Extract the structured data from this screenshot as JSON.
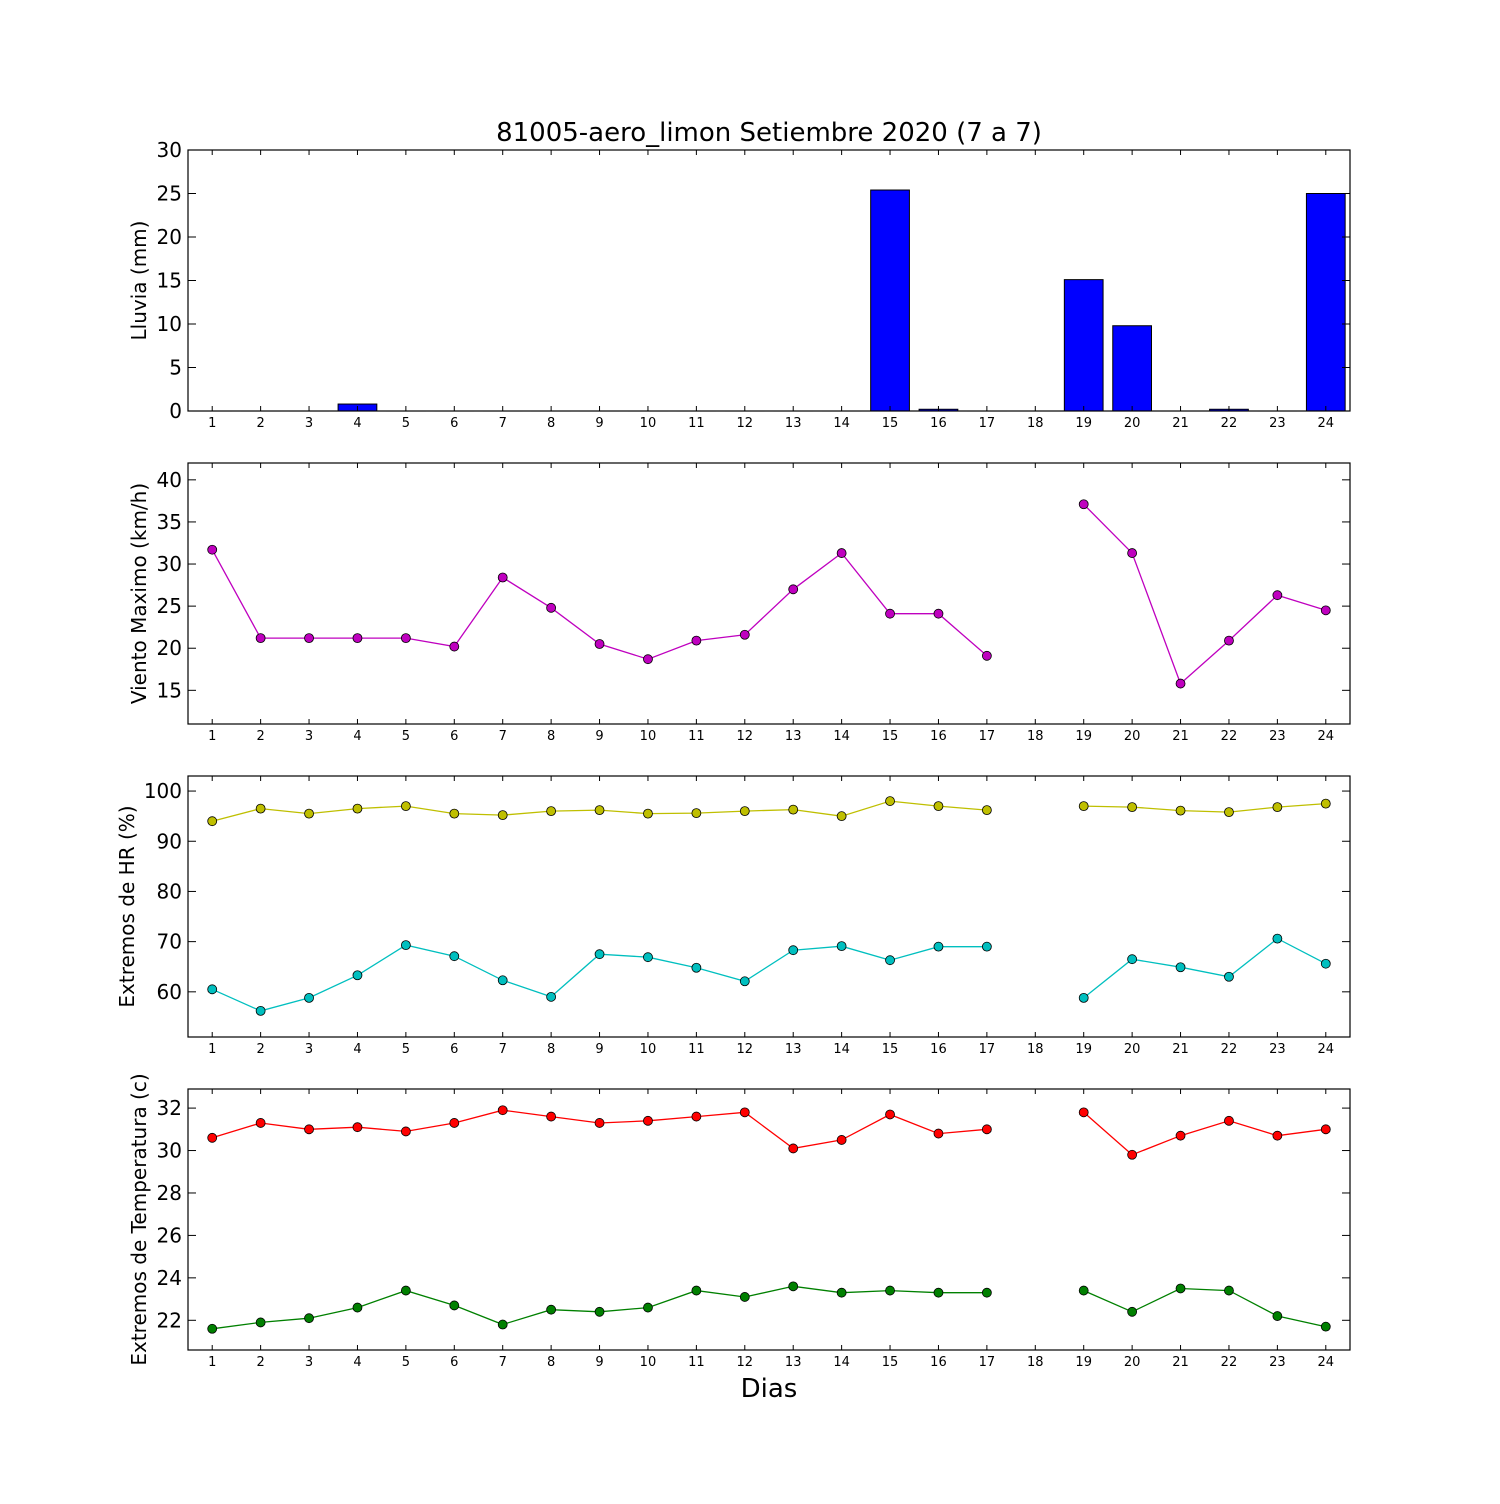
{
  "title": "81005-aero_limon Setiembre 2020  (7 a 7)",
  "xlabel": "Dias",
  "chart_data": [
    {
      "type": "bar",
      "ylabel": "Lluvia (mm)",
      "ylim": [
        0,
        30
      ],
      "yticks": [
        0,
        5,
        10,
        15,
        20,
        25,
        30
      ],
      "xlim": [
        0.5,
        24.5
      ],
      "x": [
        1,
        2,
        3,
        4,
        5,
        6,
        7,
        8,
        9,
        10,
        11,
        12,
        13,
        14,
        15,
        16,
        17,
        18,
        19,
        20,
        21,
        22,
        23,
        24
      ],
      "tick_labels": [
        "1",
        "2",
        "3",
        "4",
        "5",
        "6",
        "7",
        "8",
        "9",
        "10",
        "11",
        "12",
        "13",
        "14",
        "15",
        "16",
        "17",
        "18",
        "19",
        "20",
        "21",
        "22",
        "23",
        "24"
      ],
      "series": [
        {
          "values": [
            0,
            0,
            0,
            0.8,
            0,
            0,
            0,
            0,
            0,
            0,
            0,
            0,
            0,
            0,
            25.4,
            0.2,
            0,
            null,
            15.1,
            9.8,
            0,
            0.2,
            0,
            25.0
          ],
          "color": "#0000ff"
        }
      ]
    },
    {
      "type": "line",
      "ylabel": "Viento Maximo (km/h)",
      "ylim": [
        11,
        42
      ],
      "yticks": [
        15,
        20,
        25,
        30,
        35,
        40
      ],
      "xlim": [
        0.5,
        24.5
      ],
      "x": [
        1,
        2,
        3,
        4,
        5,
        6,
        7,
        8,
        9,
        10,
        11,
        12,
        13,
        14,
        15,
        16,
        17,
        18,
        19,
        20,
        21,
        22,
        23,
        24
      ],
      "tick_labels": [
        "1",
        "2",
        "3",
        "4",
        "5",
        "6",
        "7",
        "8",
        "9",
        "10",
        "11",
        "12",
        "13",
        "14",
        "15",
        "16",
        "17",
        "18",
        "19",
        "20",
        "21",
        "22",
        "23",
        "24"
      ],
      "series": [
        {
          "values": [
            31.7,
            21.2,
            21.2,
            21.2,
            21.2,
            20.2,
            28.4,
            24.8,
            20.5,
            18.7,
            20.9,
            21.6,
            27.0,
            31.3,
            24.1,
            24.1,
            19.1,
            null,
            37.1,
            31.3,
            15.8,
            20.9,
            26.3,
            24.5
          ],
          "color": "#bf00bf"
        }
      ]
    },
    {
      "type": "line",
      "ylabel": "Extremos de HR (%)",
      "ylim": [
        51,
        103
      ],
      "yticks": [
        60,
        70,
        80,
        90,
        100
      ],
      "xlim": [
        0.5,
        24.5
      ],
      "x": [
        1,
        2,
        3,
        4,
        5,
        6,
        7,
        8,
        9,
        10,
        11,
        12,
        13,
        14,
        15,
        16,
        17,
        18,
        19,
        20,
        21,
        22,
        23,
        24
      ],
      "tick_labels": [
        "1",
        "2",
        "3",
        "4",
        "5",
        "6",
        "7",
        "8",
        "9",
        "10",
        "11",
        "12",
        "13",
        "14",
        "15",
        "16",
        "17",
        "18",
        "19",
        "20",
        "21",
        "22",
        "23",
        "24"
      ],
      "series": [
        {
          "values": [
            94,
            96.5,
            95.5,
            96.5,
            97,
            95.5,
            95.2,
            96,
            96.2,
            95.5,
            95.6,
            96,
            96.3,
            95,
            98,
            97,
            96.2,
            null,
            97,
            96.8,
            96.1,
            95.8,
            96.8,
            97.5
          ],
          "color": "#bfbf00"
        },
        {
          "values": [
            60.5,
            56.2,
            58.8,
            63.3,
            69.3,
            67.1,
            62.3,
            59,
            67.5,
            66.9,
            64.8,
            62.1,
            68.3,
            69.1,
            66.3,
            69,
            69,
            null,
            58.8,
            66.5,
            64.9,
            63,
            70.6,
            65.6
          ],
          "color": "#00bfbf"
        }
      ]
    },
    {
      "type": "line",
      "ylabel": "Extremos de Temperatura (c)",
      "ylim": [
        20.6,
        32.9
      ],
      "yticks": [
        22,
        24,
        26,
        28,
        30,
        32
      ],
      "xlim": [
        0.5,
        24.5
      ],
      "x": [
        1,
        2,
        3,
        4,
        5,
        6,
        7,
        8,
        9,
        10,
        11,
        12,
        13,
        14,
        15,
        16,
        17,
        18,
        19,
        20,
        21,
        22,
        23,
        24
      ],
      "tick_labels": [
        "1",
        "2",
        "3",
        "4",
        "5",
        "6",
        "7",
        "8",
        "9",
        "10",
        "11",
        "12",
        "13",
        "14",
        "15",
        "16",
        "17",
        "18",
        "19",
        "20",
        "21",
        "22",
        "23",
        "24"
      ],
      "series": [
        {
          "values": [
            30.6,
            31.3,
            31,
            31.1,
            30.9,
            31.3,
            31.9,
            31.6,
            31.3,
            31.4,
            31.6,
            31.8,
            30.1,
            30.5,
            31.7,
            30.8,
            31,
            null,
            31.8,
            29.8,
            30.7,
            31.4,
            30.7,
            31
          ],
          "color": "#ff0000"
        },
        {
          "values": [
            21.6,
            21.9,
            22.1,
            22.6,
            23.4,
            22.7,
            21.8,
            22.5,
            22.4,
            22.6,
            23.4,
            23.1,
            23.6,
            23.3,
            23.4,
            23.3,
            23.3,
            null,
            23.4,
            22.4,
            23.5,
            23.4,
            22.2,
            21.7
          ],
          "color": "#008000"
        }
      ]
    }
  ]
}
